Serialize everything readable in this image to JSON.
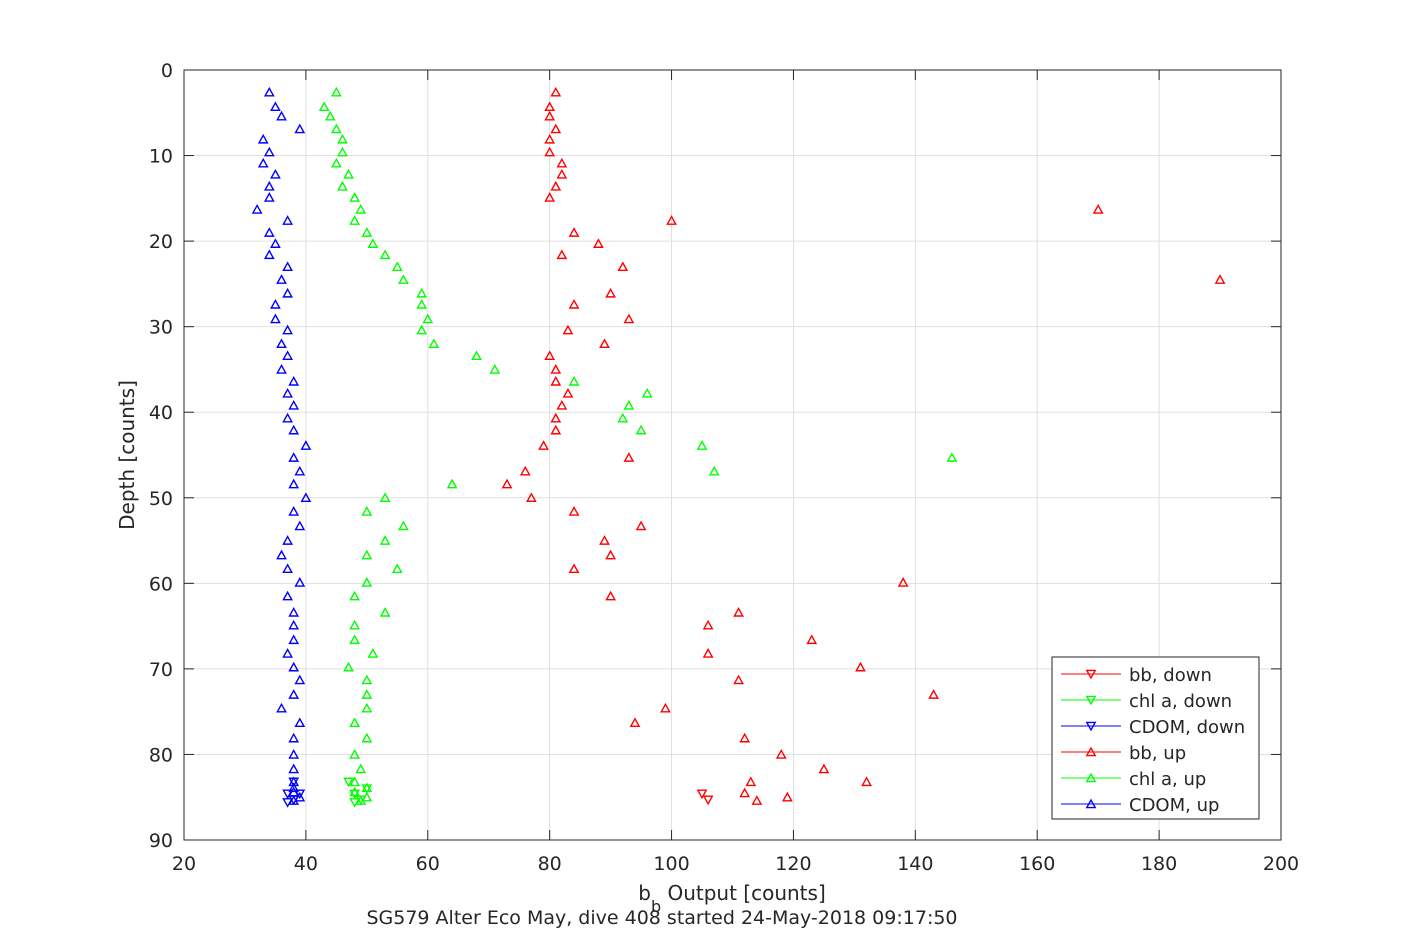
{
  "chart_data": {
    "type": "scatter",
    "title": "",
    "xlabel_main": "b",
    "xlabel_sub": "b",
    "xlabel_rest": " Output [counts]",
    "ylabel": "Depth [counts]",
    "caption": "SG579 Alter Eco May, dive 408 started 24-May-2018 09:17:50",
    "xlim": [
      20,
      200
    ],
    "ylim": [
      0,
      90
    ],
    "y_reversed": true,
    "grid": true,
    "legend_position": "bottom-right",
    "x_ticks": [
      "20",
      "40",
      "60",
      "80",
      "100",
      "120",
      "140",
      "160",
      "180",
      "200"
    ],
    "y_ticks": [
      "0",
      "10",
      "20",
      "30",
      "40",
      "50",
      "60",
      "70",
      "80",
      "90"
    ],
    "series": [
      {
        "name": "bb, down",
        "color": "#ff0000",
        "marker": "triangle-down",
        "points": [
          [
            105,
            84.6
          ],
          [
            106,
            85.3
          ]
        ]
      },
      {
        "name": "chl a, down",
        "color": "#00ff00",
        "marker": "triangle-down",
        "points": [
          [
            47,
            83.2
          ],
          [
            48,
            84.6
          ],
          [
            50,
            84.0
          ],
          [
            49,
            85.3
          ],
          [
            48,
            85.6
          ]
        ]
      },
      {
        "name": "CDOM, down",
        "color": "#0000ff",
        "marker": "triangle-down",
        "points": [
          [
            38,
            83.2
          ],
          [
            37,
            84.6
          ],
          [
            39,
            84.6
          ],
          [
            38,
            85.3
          ],
          [
            37,
            85.6
          ]
        ]
      },
      {
        "name": "bb, up",
        "color": "#ff0000",
        "marker": "triangle-up",
        "points": [
          [
            81,
            2.6
          ],
          [
            80,
            4.3
          ],
          [
            80,
            5.4
          ],
          [
            81,
            6.9
          ],
          [
            80,
            8.1
          ],
          [
            80,
            9.6
          ],
          [
            82,
            10.9
          ],
          [
            82,
            12.2
          ],
          [
            81,
            13.6
          ],
          [
            80,
            14.9
          ],
          [
            170,
            16.3
          ],
          [
            100,
            17.6
          ],
          [
            84,
            19.0
          ],
          [
            88,
            20.3
          ],
          [
            82,
            21.6
          ],
          [
            92,
            23.0
          ],
          [
            190,
            24.5
          ],
          [
            90,
            26.1
          ],
          [
            84,
            27.4
          ],
          [
            93,
            29.1
          ],
          [
            83,
            30.4
          ],
          [
            89,
            32.0
          ],
          [
            80,
            33.4
          ],
          [
            81,
            35.0
          ],
          [
            81,
            36.4
          ],
          [
            83,
            37.8
          ],
          [
            82,
            39.2
          ],
          [
            81,
            40.7
          ],
          [
            81,
            42.1
          ],
          [
            79,
            43.9
          ],
          [
            93,
            45.3
          ],
          [
            76,
            46.9
          ],
          [
            73,
            48.4
          ],
          [
            77,
            50.0
          ],
          [
            84,
            51.6
          ],
          [
            95,
            53.3
          ],
          [
            89,
            55.0
          ],
          [
            90,
            56.7
          ],
          [
            84,
            58.3
          ],
          [
            138,
            59.9
          ],
          [
            90,
            61.5
          ],
          [
            111,
            63.4
          ],
          [
            106,
            64.9
          ],
          [
            123,
            66.6
          ],
          [
            106,
            68.2
          ],
          [
            131,
            69.8
          ],
          [
            111,
            71.3
          ],
          [
            143,
            73.0
          ],
          [
            99,
            74.6
          ],
          [
            94,
            76.3
          ],
          [
            112,
            78.1
          ],
          [
            118,
            80.0
          ],
          [
            125,
            81.7
          ],
          [
            113,
            83.2
          ],
          [
            132,
            83.2
          ],
          [
            112,
            84.5
          ],
          [
            119,
            85.0
          ],
          [
            114,
            85.4
          ]
        ]
      },
      {
        "name": "chl a, up",
        "color": "#00ff00",
        "marker": "triangle-up",
        "points": [
          [
            45,
            2.6
          ],
          [
            43,
            4.3
          ],
          [
            44,
            5.4
          ],
          [
            45,
            6.9
          ],
          [
            46,
            8.1
          ],
          [
            46,
            9.6
          ],
          [
            45,
            10.9
          ],
          [
            47,
            12.2
          ],
          [
            46,
            13.6
          ],
          [
            48,
            14.9
          ],
          [
            49,
            16.3
          ],
          [
            48,
            17.6
          ],
          [
            50,
            19.0
          ],
          [
            51,
            20.3
          ],
          [
            53,
            21.6
          ],
          [
            55,
            23.0
          ],
          [
            56,
            24.5
          ],
          [
            59,
            26.1
          ],
          [
            59,
            27.4
          ],
          [
            60,
            29.1
          ],
          [
            59,
            30.4
          ],
          [
            61,
            32.0
          ],
          [
            68,
            33.4
          ],
          [
            71,
            35.0
          ],
          [
            84,
            36.4
          ],
          [
            96,
            37.8
          ],
          [
            93,
            39.2
          ],
          [
            92,
            40.7
          ],
          [
            95,
            42.1
          ],
          [
            105,
            43.9
          ],
          [
            146,
            45.3
          ],
          [
            107,
            46.9
          ],
          [
            64,
            48.4
          ],
          [
            53,
            50.0
          ],
          [
            50,
            51.6
          ],
          [
            56,
            53.3
          ],
          [
            53,
            55.0
          ],
          [
            50,
            56.7
          ],
          [
            55,
            58.3
          ],
          [
            50,
            59.9
          ],
          [
            48,
            61.5
          ],
          [
            53,
            63.4
          ],
          [
            48,
            64.9
          ],
          [
            48,
            66.6
          ],
          [
            51,
            68.2
          ],
          [
            47,
            69.8
          ],
          [
            50,
            71.3
          ],
          [
            50,
            73.0
          ],
          [
            50,
            74.6
          ],
          [
            48,
            76.3
          ],
          [
            50,
            78.1
          ],
          [
            48,
            80.0
          ],
          [
            49,
            81.7
          ],
          [
            48,
            83.2
          ],
          [
            50,
            83.9
          ],
          [
            48,
            84.4
          ],
          [
            50,
            85.0
          ],
          [
            49,
            85.4
          ]
        ]
      },
      {
        "name": "CDOM, up",
        "color": "#0000ff",
        "marker": "triangle-up",
        "points": [
          [
            34,
            2.6
          ],
          [
            35,
            4.3
          ],
          [
            36,
            5.4
          ],
          [
            39,
            6.9
          ],
          [
            33,
            8.1
          ],
          [
            34,
            9.6
          ],
          [
            33,
            10.9
          ],
          [
            35,
            12.2
          ],
          [
            34,
            13.6
          ],
          [
            34,
            14.9
          ],
          [
            32,
            16.3
          ],
          [
            37,
            17.6
          ],
          [
            34,
            19.0
          ],
          [
            35,
            20.3
          ],
          [
            34,
            21.6
          ],
          [
            37,
            23.0
          ],
          [
            36,
            24.5
          ],
          [
            37,
            26.1
          ],
          [
            35,
            27.4
          ],
          [
            35,
            29.1
          ],
          [
            37,
            30.4
          ],
          [
            36,
            32.0
          ],
          [
            37,
            33.4
          ],
          [
            36,
            35.0
          ],
          [
            38,
            36.4
          ],
          [
            37,
            37.8
          ],
          [
            38,
            39.2
          ],
          [
            37,
            40.7
          ],
          [
            38,
            42.1
          ],
          [
            40,
            43.9
          ],
          [
            38,
            45.3
          ],
          [
            39,
            46.9
          ],
          [
            38,
            48.4
          ],
          [
            40,
            50.0
          ],
          [
            38,
            51.6
          ],
          [
            39,
            53.3
          ],
          [
            37,
            55.0
          ],
          [
            36,
            56.7
          ],
          [
            37,
            58.3
          ],
          [
            39,
            59.9
          ],
          [
            37,
            61.5
          ],
          [
            38,
            63.4
          ],
          [
            38,
            64.9
          ],
          [
            38,
            66.6
          ],
          [
            37,
            68.2
          ],
          [
            38,
            69.8
          ],
          [
            39,
            71.3
          ],
          [
            38,
            73.0
          ],
          [
            36,
            74.6
          ],
          [
            39,
            76.3
          ],
          [
            38,
            78.1
          ],
          [
            38,
            80.0
          ],
          [
            38,
            81.7
          ],
          [
            38,
            83.2
          ],
          [
            38,
            83.9
          ],
          [
            38,
            84.4
          ],
          [
            39,
            85.0
          ],
          [
            38,
            85.4
          ]
        ]
      }
    ]
  }
}
